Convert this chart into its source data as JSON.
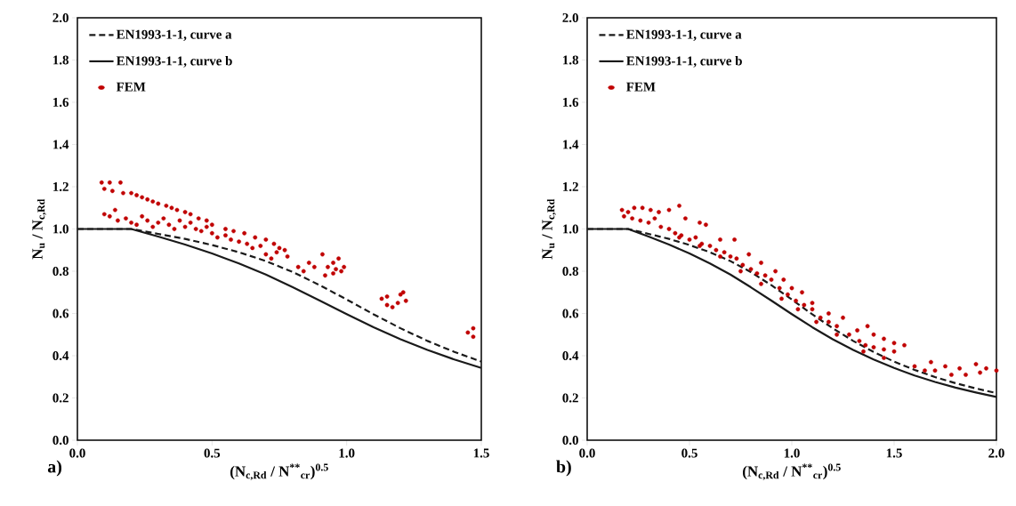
{
  "chart_data": [
    {
      "type": "scatter",
      "xlabel": "(N$_{c,Rd}$ / N$^{**}$$_{cr}$)$^{0.5}$",
      "ylabel": "N$_{u}$ / N$_{c,Rd}$",
      "annotations": [
        "a)"
      ],
      "legend": "top left",
      "xlim": [
        0,
        1.5
      ],
      "ylim": [
        0,
        2
      ],
      "xticks": [
        {
          "value": 0,
          "label": "0.0"
        },
        {
          "value": 0.5,
          "label": "0.5"
        },
        {
          "value": 1,
          "label": "1.0"
        },
        {
          "value": 1.5,
          "label": "1.5"
        }
      ],
      "yticks": [
        {
          "value": 0,
          "label": "0.0"
        },
        {
          "value": 0.2,
          "label": "0.2"
        },
        {
          "value": 0.4,
          "label": "0.4"
        },
        {
          "value": 0.6,
          "label": "0.6"
        },
        {
          "value": 0.8,
          "label": "0.8"
        },
        {
          "value": 1,
          "label": "1.0"
        },
        {
          "value": 1.2,
          "label": "1.2"
        },
        {
          "value": 1.4,
          "label": "1.4"
        },
        {
          "value": 1.6,
          "label": "1.6"
        },
        {
          "value": 1.8,
          "label": "1.8"
        },
        {
          "value": 2,
          "label": "2.0"
        }
      ],
      "series": [
        {
          "name": "EN1993-1-1, curve a",
          "type": "line",
          "line_style": "dashed",
          "marker": "none",
          "color": "#1a1a1a",
          "x": [
            0,
            0.2,
            0.3,
            0.4,
            0.5,
            0.6,
            0.7,
            0.8,
            0.9,
            1.0,
            1.1,
            1.2,
            1.3,
            1.4,
            1.5
          ],
          "values": [
            1,
            1,
            0.977,
            0.953,
            0.924,
            0.89,
            0.848,
            0.796,
            0.734,
            0.666,
            0.596,
            0.53,
            0.47,
            0.418,
            0.372
          ]
        },
        {
          "name": "EN1993-1-1, curve b",
          "type": "line",
          "line_style": "solid",
          "marker": "none",
          "color": "#1a1a1a",
          "x": [
            0,
            0.2,
            0.3,
            0.4,
            0.5,
            0.6,
            0.7,
            0.8,
            0.9,
            1.0,
            1.1,
            1.2,
            1.3,
            1.4,
            1.5
          ],
          "values": [
            1,
            1,
            0.964,
            0.926,
            0.884,
            0.837,
            0.784,
            0.724,
            0.661,
            0.597,
            0.535,
            0.478,
            0.427,
            0.382,
            0.342
          ]
        },
        {
          "name": "FEM",
          "marker": "circle",
          "color": "#c00000",
          "x": [
            0.09,
            0.12,
            0.16,
            0.1,
            0.13,
            0.17,
            0.2,
            0.22,
            0.24,
            0.26,
            0.28,
            0.3,
            0.33,
            0.35,
            0.37,
            0.4,
            0.42,
            0.45,
            0.48,
            0.5,
            0.55,
            0.58,
            0.62,
            0.66,
            0.7,
            0.73,
            0.75,
            0.1,
            0.12,
            0.14,
            0.15,
            0.18,
            0.2,
            0.22,
            0.24,
            0.26,
            0.28,
            0.3,
            0.32,
            0.34,
            0.36,
            0.38,
            0.4,
            0.42,
            0.44,
            0.46,
            0.48,
            0.5,
            0.52,
            0.55,
            0.57,
            0.6,
            0.63,
            0.65,
            0.68,
            0.7,
            0.72,
            0.74,
            0.77,
            0.78,
            0.82,
            0.84,
            0.86,
            0.88,
            0.91,
            0.92,
            0.93,
            0.95,
            0.95,
            0.96,
            0.97,
            0.98,
            0.99,
            1.13,
            1.15,
            1.15,
            1.17,
            1.19,
            1.2,
            1.21,
            1.22,
            1.45,
            1.47,
            1.47
          ],
          "values": [
            1.22,
            1.22,
            1.22,
            1.19,
            1.18,
            1.17,
            1.17,
            1.16,
            1.15,
            1.14,
            1.13,
            1.12,
            1.11,
            1.1,
            1.09,
            1.08,
            1.07,
            1.05,
            1.04,
            1.02,
            1.0,
            0.99,
            0.98,
            0.96,
            0.95,
            0.93,
            0.91,
            1.07,
            1.06,
            1.09,
            1.04,
            1.05,
            1.03,
            1.02,
            1.06,
            1.04,
            1.01,
            1.03,
            1.05,
            1.02,
            1.0,
            1.04,
            1.01,
            1.03,
            1.0,
            0.99,
            1.01,
            0.98,
            0.96,
            0.97,
            0.95,
            0.94,
            0.93,
            0.91,
            0.92,
            0.88,
            0.86,
            0.89,
            0.9,
            0.87,
            0.82,
            0.8,
            0.84,
            0.82,
            0.88,
            0.78,
            0.82,
            0.84,
            0.79,
            0.81,
            0.86,
            0.8,
            0.82,
            0.67,
            0.68,
            0.64,
            0.63,
            0.65,
            0.69,
            0.7,
            0.66,
            0.51,
            0.53,
            0.49
          ]
        }
      ]
    },
    {
      "type": "scatter",
      "xlabel": "(N$_{c,Rd}$ / N$^{**}$$_{cr}$)$^{0.5}$",
      "ylabel": "N$_{u}$ / N$_{c,Rd}$",
      "annotations": [
        "b)"
      ],
      "legend": "top left",
      "xlim": [
        0,
        2
      ],
      "ylim": [
        0,
        2
      ],
      "xticks": [
        {
          "value": 0,
          "label": "0.0"
        },
        {
          "value": 0.5,
          "label": "0.5"
        },
        {
          "value": 1,
          "label": "1.0"
        },
        {
          "value": 1.5,
          "label": "1.5"
        },
        {
          "value": 2,
          "label": "2.0"
        }
      ],
      "yticks": [
        {
          "value": 0,
          "label": "0.0"
        },
        {
          "value": 0.2,
          "label": "0.2"
        },
        {
          "value": 0.4,
          "label": "0.4"
        },
        {
          "value": 0.6,
          "label": "0.6"
        },
        {
          "value": 0.8,
          "label": "0.8"
        },
        {
          "value": 1,
          "label": "1.0"
        },
        {
          "value": 1.2,
          "label": "1.2"
        },
        {
          "value": 1.4,
          "label": "1.4"
        },
        {
          "value": 1.6,
          "label": "1.6"
        },
        {
          "value": 1.8,
          "label": "1.8"
        },
        {
          "value": 2,
          "label": "2.0"
        }
      ],
      "series": [
        {
          "name": "EN1993-1-1, curve a",
          "type": "line",
          "line_style": "dashed",
          "marker": "none",
          "color": "#1a1a1a",
          "x": [
            0,
            0.2,
            0.3,
            0.4,
            0.5,
            0.6,
            0.7,
            0.8,
            0.9,
            1.0,
            1.1,
            1.2,
            1.3,
            1.4,
            1.5,
            1.6,
            1.7,
            1.8,
            1.9,
            2.0
          ],
          "values": [
            1,
            1,
            0.977,
            0.953,
            0.924,
            0.89,
            0.848,
            0.796,
            0.734,
            0.666,
            0.596,
            0.53,
            0.47,
            0.418,
            0.372,
            0.333,
            0.299,
            0.27,
            0.245,
            0.223
          ]
        },
        {
          "name": "EN1993-1-1, curve b",
          "type": "line",
          "line_style": "solid",
          "marker": "none",
          "color": "#1a1a1a",
          "x": [
            0,
            0.2,
            0.3,
            0.4,
            0.5,
            0.6,
            0.7,
            0.8,
            0.9,
            1.0,
            1.1,
            1.2,
            1.3,
            1.4,
            1.5,
            1.6,
            1.7,
            1.8,
            1.9,
            2.0
          ],
          "values": [
            1,
            1,
            0.964,
            0.926,
            0.884,
            0.837,
            0.784,
            0.724,
            0.661,
            0.597,
            0.535,
            0.478,
            0.427,
            0.382,
            0.342,
            0.306,
            0.276,
            0.249,
            0.226,
            0.205
          ]
        },
        {
          "name": "FEM",
          "marker": "circle",
          "color": "#c00000",
          "x": [
            0.17,
            0.2,
            0.23,
            0.27,
            0.31,
            0.35,
            0.4,
            0.45,
            0.48,
            0.55,
            0.58,
            0.65,
            0.72,
            0.79,
            0.85,
            0.92,
            0.96,
            1.0,
            1.05,
            1.1,
            1.18,
            1.25,
            1.32,
            1.37,
            1.4,
            1.45,
            1.5,
            1.55,
            1.6,
            1.68,
            1.75,
            1.82,
            1.9,
            1.95,
            2.0,
            0.18,
            0.22,
            0.26,
            0.3,
            0.33,
            0.36,
            0.4,
            0.43,
            0.46,
            0.5,
            0.53,
            0.56,
            0.6,
            0.63,
            0.67,
            0.7,
            0.73,
            0.76,
            0.8,
            0.83,
            0.87,
            0.9,
            0.94,
            0.98,
            1.02,
            1.06,
            1.1,
            1.14,
            1.18,
            1.22,
            1.28,
            1.33,
            1.36,
            1.4,
            1.45,
            1.5,
            1.7,
            1.78,
            1.85,
            1.92,
            0.45,
            0.55,
            0.65,
            0.75,
            0.85,
            0.95,
            1.03,
            1.12,
            1.22,
            1.35,
            1.45,
            1.65
          ],
          "values": [
            1.09,
            1.08,
            1.1,
            1.1,
            1.09,
            1.08,
            1.09,
            1.11,
            1.05,
            1.03,
            1.02,
            0.95,
            0.95,
            0.88,
            0.84,
            0.8,
            0.76,
            0.72,
            0.7,
            0.65,
            0.6,
            0.58,
            0.52,
            0.54,
            0.5,
            0.48,
            0.46,
            0.45,
            0.35,
            0.37,
            0.35,
            0.34,
            0.36,
            0.34,
            0.33,
            1.06,
            1.05,
            1.04,
            1.03,
            1.05,
            1.01,
            1.0,
            0.98,
            0.97,
            0.95,
            0.96,
            0.93,
            0.92,
            0.9,
            0.89,
            0.87,
            0.86,
            0.83,
            0.81,
            0.79,
            0.78,
            0.76,
            0.72,
            0.69,
            0.66,
            0.64,
            0.62,
            0.58,
            0.56,
            0.54,
            0.5,
            0.47,
            0.45,
            0.44,
            0.43,
            0.42,
            0.33,
            0.31,
            0.31,
            0.32,
            0.96,
            0.92,
            0.87,
            0.8,
            0.74,
            0.67,
            0.62,
            0.56,
            0.5,
            0.42,
            0.39,
            0.33
          ]
        }
      ]
    }
  ]
}
